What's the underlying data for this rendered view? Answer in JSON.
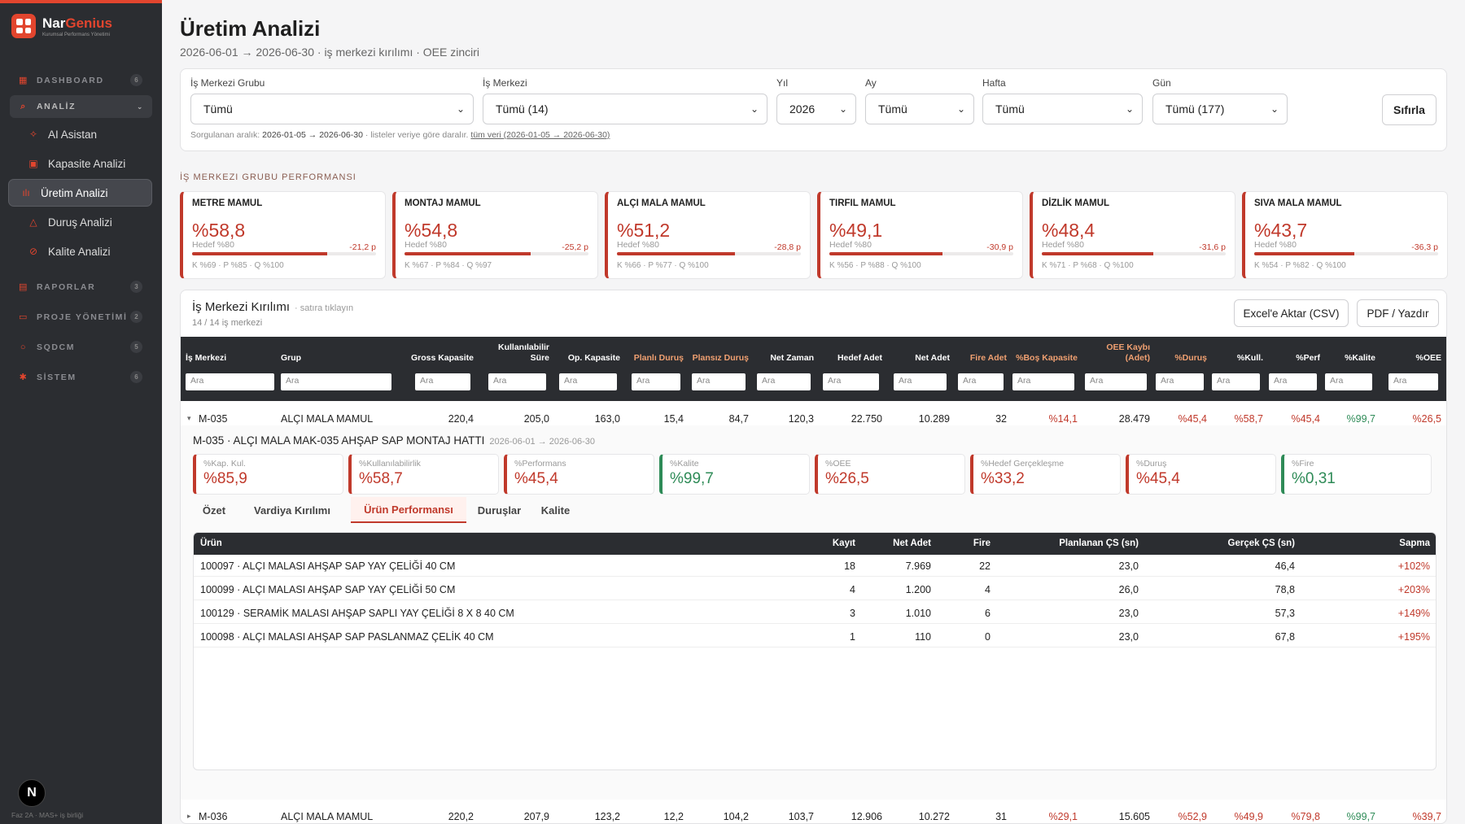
{
  "brand": {
    "name_a": "Nar",
    "name_b": "Genius",
    "tagline": "Kurumsal Performans Yönetimi"
  },
  "nav": {
    "dashboard": {
      "label": "DASHBOARD",
      "count": "6"
    },
    "analiz": {
      "label": "ANALİZ"
    },
    "items": [
      "AI Asistan",
      "Kapasite Analizi",
      "Üretim Analizi",
      "Duruş Analizi",
      "Kalite Analizi"
    ],
    "raporlar": {
      "label": "RAPORLAR",
      "count": "3"
    },
    "proje": {
      "label": "PROJE YÖNETİMİ",
      "count": "2"
    },
    "sqdcm": {
      "label": "SQDCM",
      "count": "5"
    },
    "sistem": {
      "label": "SİSTEM",
      "count": "6"
    },
    "avatar": "N",
    "footer": "Faz 2A · MAS+ iş birliği"
  },
  "page": {
    "title": "Üretim Analizi",
    "subtitle": "2026-06-01 → 2026-06-30 · iş merkezi kırılımı · OEE zinciri"
  },
  "filters": {
    "group": {
      "label": "İş Merkezi Grubu",
      "value": "Tümü"
    },
    "center": {
      "label": "İş Merkezi",
      "value": "Tümü (14)"
    },
    "year": {
      "label": "Yıl",
      "value": "2026"
    },
    "month": {
      "label": "Ay",
      "value": "Tümü"
    },
    "week": {
      "label": "Hafta",
      "value": "Tümü"
    },
    "day": {
      "label": "Gün",
      "value": "Tümü (177)"
    },
    "reset": "Sıfırla",
    "note_prefix": "Sorgulanan aralık:",
    "note_range": "2026-01-05 → 2026-06-30",
    "note_mid": "· listeler veriye göre daralır.",
    "note_link": "tüm veri (2026-01-05 → 2026-06-30)"
  },
  "group_section_title": "İş Merkezi Grubu Performansı",
  "groups": [
    {
      "name": "METRE MAMUL",
      "value": "%58,8",
      "target": "Hedef %80",
      "delta": "-21,2 p",
      "fill": 0.735,
      "kpq": "K %69 · P %85 · Q %100"
    },
    {
      "name": "MONTAJ MAMUL",
      "value": "%54,8",
      "target": "Hedef %80",
      "delta": "-25,2 p",
      "fill": 0.685,
      "kpq": "K %67 · P %84 · Q %97"
    },
    {
      "name": "ALÇI MALA MAMUL",
      "value": "%51,2",
      "target": "Hedef %80",
      "delta": "-28,8 p",
      "fill": 0.64,
      "kpq": "K %66 · P %77 · Q %100"
    },
    {
      "name": "TIRFIL MAMUL",
      "value": "%49,1",
      "target": "Hedef %80",
      "delta": "-30,9 p",
      "fill": 0.614,
      "kpq": "K %56 · P %88 · Q %100"
    },
    {
      "name": "DİZLİK MAMUL",
      "value": "%48,4",
      "target": "Hedef %80",
      "delta": "-31,6 p",
      "fill": 0.605,
      "kpq": "K %71 · P %68 · Q %100"
    },
    {
      "name": "SIVA MALA MAMUL",
      "value": "%43,7",
      "target": "Hedef %80",
      "delta": "-36,3 p",
      "fill": 0.546,
      "kpq": "K %54 · P %82 · Q %100"
    }
  ],
  "wc": {
    "title": "İş Merkezi Kırılımı",
    "hint": "· satıra tıklayın",
    "count": "14 / 14 iş merkezi",
    "export_csv": "Excel'e Aktar (CSV)",
    "export_pdf": "PDF / Yazdır",
    "filter_placeholder": "Ara",
    "headers": [
      "İş Merkezi",
      "Grup",
      "Gross Kapasite",
      "Kullanılabilir Süre",
      "Op. Kapasite",
      "Planlı Duruş",
      "Plansız Duruş",
      "Net Zaman",
      "Hedef Adet",
      "Net Adet",
      "Fire Adet",
      "%Boş Kapasite",
      "OEE Kaybı (Adet)",
      "%Duruş",
      "%Kull.",
      "%Perf",
      "%Kalite",
      "%OEE"
    ],
    "rows": [
      {
        "toggle": "▾",
        "cells": [
          "M-035",
          "ALÇI MALA MAMUL",
          "220,4",
          "205,0",
          "163,0",
          "15,4",
          "84,7",
          "120,3",
          "22.750",
          "10.289",
          "32",
          "%14,1",
          "28.479",
          "%45,4",
          "%58,7",
          "%45,4",
          "%99,7",
          "%26,5"
        ]
      },
      {
        "toggle": "▸",
        "cells": [
          "M-036",
          "ALÇI MALA MAMUL",
          "220,2",
          "207,9",
          "123,2",
          "12,2",
          "104,2",
          "103,7",
          "12.906",
          "10.272",
          "31",
          "%29,1",
          "15.605",
          "%52,9",
          "%49,9",
          "%79,8",
          "%99,7",
          "%39,7"
        ]
      }
    ]
  },
  "detail": {
    "title": "M-035 · ALÇI MALA MAK-035 AHŞAP SAP MONTAJ HATTI",
    "range": "2026-06-01 → 2026-06-30",
    "kpis": [
      {
        "label": "%Kap. Kul.",
        "value": "%85,9"
      },
      {
        "label": "%Kullanılabilirlik",
        "value": "%58,7"
      },
      {
        "label": "%Performans",
        "value": "%45,4"
      },
      {
        "label": "%Kalite",
        "value": "%99,7"
      },
      {
        "label": "%OEE",
        "value": "%26,5"
      },
      {
        "label": "%Hedef Gerçekleşme",
        "value": "%33,2"
      },
      {
        "label": "%Duruş",
        "value": "%45,4"
      },
      {
        "label": "%Fire",
        "value": "%0,31"
      }
    ],
    "tabs": [
      "Özet",
      "Vardiya Kırılımı",
      "Ürün Performansı",
      "Duruşlar",
      "Kalite"
    ],
    "product_headers": [
      "Ürün",
      "Kayıt",
      "Net Adet",
      "Fire",
      "Planlanan ÇS (sn)",
      "Gerçek ÇS (sn)",
      "Sapma"
    ],
    "products": [
      [
        "100097 · ALÇI MALASI AHŞAP SAP YAY ÇELİĞİ 40 CM",
        "18",
        "7.969",
        "22",
        "23,0",
        "46,4",
        "+102%"
      ],
      [
        "100099 · ALÇI MALASI AHŞAP SAP YAY ÇELİĞİ 50 CM",
        "4",
        "1.200",
        "4",
        "26,0",
        "78,8",
        "+203%"
      ],
      [
        "100129 · SERAMİK MALASI AHŞAP SAPLI YAY ÇELİĞİ 8 X 8 40 CM",
        "3",
        "1.010",
        "6",
        "23,0",
        "57,3",
        "+149%"
      ],
      [
        "100098 · ALÇI MALASI AHŞAP SAP PASLANMAZ ÇELİK 40 CM",
        "1",
        "110",
        "0",
        "23,0",
        "67,8",
        "+195%"
      ]
    ]
  },
  "colors": {
    "accent": "#e2452e",
    "bad": "#c0392b",
    "good": "#2e8b57",
    "sidebar": "#2b2d31"
  }
}
